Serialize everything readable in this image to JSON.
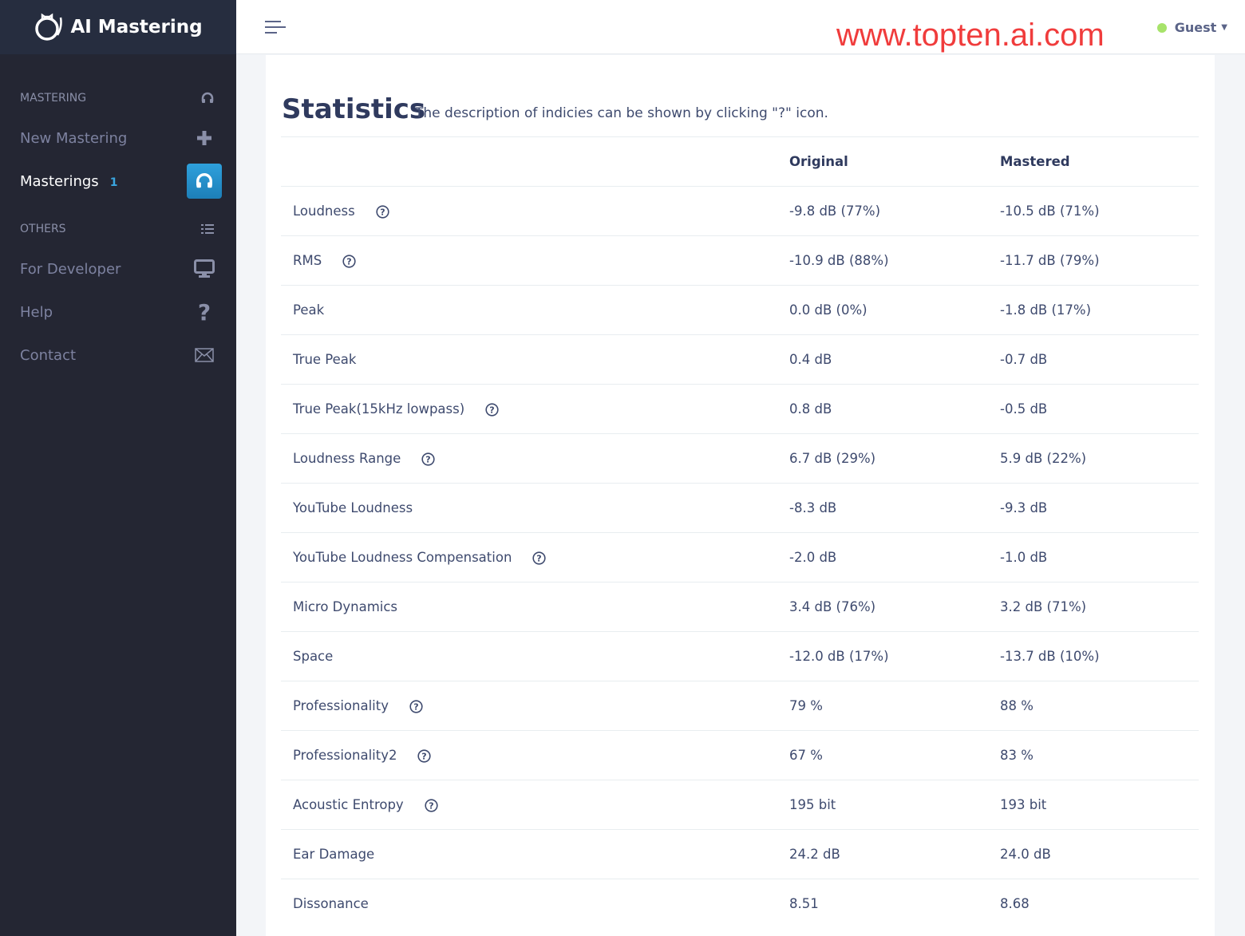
{
  "app": {
    "name": "AI Mastering"
  },
  "sidebar": {
    "sections": [
      {
        "label": "MASTERING",
        "icon": "headphones-icon"
      },
      {
        "label": "OTHERS",
        "icon": "list-icon"
      }
    ],
    "items": [
      {
        "label": "New Mastering",
        "icon": "plus-icon"
      },
      {
        "label": "Masterings",
        "badge": "1",
        "icon": "headphones-icon",
        "active": true
      },
      {
        "label": "For Developer",
        "icon": "monitor-icon"
      },
      {
        "label": "Help",
        "icon": "question-icon"
      },
      {
        "label": "Contact",
        "icon": "envelope-icon"
      }
    ]
  },
  "header": {
    "watermark": "www.topten.ai.com",
    "user": "Guest",
    "status_color": "#a7e36a"
  },
  "main": {
    "title": "Statistics",
    "description": "The description of indicies can be shown by clicking \"?\" icon.",
    "columns": [
      "",
      "Original",
      "Mastered"
    ],
    "rows": [
      {
        "name": "Loudness",
        "help": true,
        "original": "-9.8 dB (77%)",
        "mastered": "-10.5 dB (71%)"
      },
      {
        "name": "RMS",
        "help": true,
        "original": "-10.9 dB (88%)",
        "mastered": "-11.7 dB (79%)"
      },
      {
        "name": "Peak",
        "help": false,
        "original": "0.0 dB (0%)",
        "mastered": "-1.8 dB (17%)"
      },
      {
        "name": "True Peak",
        "help": false,
        "original": "0.4 dB",
        "mastered": "-0.7 dB"
      },
      {
        "name": "True Peak(15kHz lowpass)",
        "help": true,
        "original": "0.8 dB",
        "mastered": "-0.5 dB"
      },
      {
        "name": "Loudness Range",
        "help": true,
        "original": "6.7 dB (29%)",
        "mastered": "5.9 dB (22%)"
      },
      {
        "name": "YouTube Loudness",
        "help": false,
        "original": "-8.3 dB",
        "mastered": "-9.3 dB"
      },
      {
        "name": "YouTube Loudness Compensation",
        "help": true,
        "original": "-2.0 dB",
        "mastered": "-1.0 dB"
      },
      {
        "name": "Micro Dynamics",
        "help": false,
        "original": "3.4 dB (76%)",
        "mastered": "3.2 dB (71%)"
      },
      {
        "name": "Space",
        "help": false,
        "original": "-12.0 dB (17%)",
        "mastered": "-13.7 dB (10%)"
      },
      {
        "name": "Professionality",
        "help": true,
        "original": "79 %",
        "mastered": "88 %"
      },
      {
        "name": "Professionality2",
        "help": true,
        "original": "67 %",
        "mastered": "83 %"
      },
      {
        "name": "Acoustic Entropy",
        "help": true,
        "original": "195 bit",
        "mastered": "193 bit"
      },
      {
        "name": "Ear Damage",
        "help": false,
        "original": "24.2 dB",
        "mastered": "24.0 dB"
      },
      {
        "name": "Dissonance",
        "help": false,
        "original": "8.51",
        "mastered": "8.68"
      }
    ]
  }
}
